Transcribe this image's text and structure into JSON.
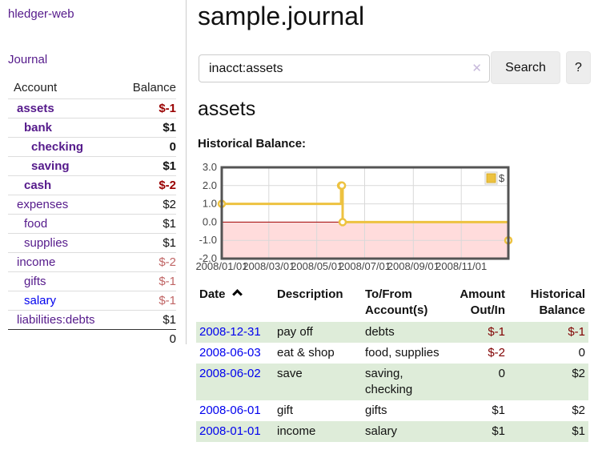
{
  "colors": {
    "link_purple": "#551a8b",
    "link_blue": "#0000ee",
    "negative_strong": "#990000",
    "negative_soft": "#c06565",
    "register_negative": "#800000",
    "row_stripe_green": "#deecd9",
    "chart_line": "#edc240",
    "chart_negative_region": "#ffdcdc",
    "chart_zero_line": "#a00000"
  },
  "sidebar": {
    "brand": "hledger-web",
    "journal_label": "Journal",
    "accounts_header": {
      "account": "Account",
      "balance": "Balance"
    },
    "accounts": [
      {
        "name": "assets",
        "indent": 0,
        "bold": true,
        "link": "purple",
        "balance": "$-1",
        "negative": "strong"
      },
      {
        "name": "bank",
        "indent": 1,
        "bold": true,
        "link": "purple",
        "balance": "$1",
        "negative": null
      },
      {
        "name": "checking",
        "indent": 2,
        "bold": true,
        "link": "purple",
        "balance": "0",
        "negative": null
      },
      {
        "name": "saving",
        "indent": 2,
        "bold": true,
        "link": "purple",
        "balance": "$1",
        "negative": null
      },
      {
        "name": "cash",
        "indent": 1,
        "bold": true,
        "link": "purple",
        "balance": "$-2",
        "negative": "strong"
      },
      {
        "name": "expenses",
        "indent": 0,
        "bold": false,
        "link": "purple",
        "balance": "$2",
        "negative": null
      },
      {
        "name": "food",
        "indent": 1,
        "bold": false,
        "link": "purple",
        "balance": "$1",
        "negative": null
      },
      {
        "name": "supplies",
        "indent": 1,
        "bold": false,
        "link": "purple",
        "balance": "$1",
        "negative": null
      },
      {
        "name": "income",
        "indent": 0,
        "bold": false,
        "link": "purple",
        "balance": "$-2",
        "negative": "soft"
      },
      {
        "name": "gifts",
        "indent": 1,
        "bold": false,
        "link": "purple",
        "balance": "$-1",
        "negative": "soft"
      },
      {
        "name": "salary",
        "indent": 1,
        "bold": false,
        "link": "blue",
        "balance": "$-1",
        "negative": "soft"
      },
      {
        "name": "liabilities:debts",
        "indent": 0,
        "bold": false,
        "link": "purple",
        "balance": "$1",
        "negative": null
      }
    ],
    "total": "0"
  },
  "main": {
    "title": "sample.journal",
    "search": {
      "value": "inacct:assets",
      "clear_icon": "✕",
      "button_label": "Search",
      "help_label": "?"
    },
    "account_heading": "assets",
    "chart_title": "Historical Balance:",
    "register": {
      "headers": [
        "Date",
        "Description",
        "To/From Account(s)",
        "Amount Out/In",
        "Historical Balance"
      ],
      "sort_icon": "chevron-up",
      "rows": [
        {
          "date": "2008-12-31",
          "description": "pay off",
          "accounts": "debts",
          "amount": "$-1",
          "amount_negative": true,
          "balance": "$-1",
          "balance_negative": true
        },
        {
          "date": "2008-06-03",
          "description": "eat & shop",
          "accounts": "food, supplies",
          "amount": "$-2",
          "amount_negative": true,
          "balance": "0",
          "balance_negative": false
        },
        {
          "date": "2008-06-02",
          "description": "save",
          "accounts": "saving, checking",
          "amount": "0",
          "amount_negative": false,
          "balance": "$2",
          "balance_negative": false
        },
        {
          "date": "2008-06-01",
          "description": "gift",
          "accounts": "gifts",
          "amount": "$1",
          "amount_negative": false,
          "balance": "$2",
          "balance_negative": false
        },
        {
          "date": "2008-01-01",
          "description": "income",
          "accounts": "salary",
          "amount": "$1",
          "amount_negative": false,
          "balance": "$1",
          "balance_negative": false
        }
      ]
    }
  },
  "chart_data": {
    "type": "line",
    "title": "Historical Balance",
    "step": true,
    "x_start": "2008-01-01",
    "x_end": "2008-12-31",
    "x_ticks": [
      "2008/01/01",
      "2008/03/01",
      "2008/05/01",
      "2008/07/01",
      "2008/09/01",
      "2008/11/01"
    ],
    "y_ticks": [
      "3.0",
      "2.0",
      "1.0",
      "0.0",
      "-1.0",
      "-2.0"
    ],
    "ylim": [
      -2,
      3
    ],
    "grid": true,
    "legend_position": "top-right",
    "legend": [
      {
        "label": "$",
        "color": "#edc240"
      }
    ],
    "series": [
      {
        "name": "$",
        "color": "#edc240",
        "points": [
          {
            "date": "2008-01-01",
            "value": 1
          },
          {
            "date": "2008-06-01",
            "value": 2
          },
          {
            "date": "2008-06-02",
            "value": 2
          },
          {
            "date": "2008-06-03",
            "value": 0
          },
          {
            "date": "2008-12-31",
            "value": -1
          }
        ]
      }
    ],
    "negative_region_color": "#ffdcdc",
    "zero_line_color": "#a00000"
  }
}
